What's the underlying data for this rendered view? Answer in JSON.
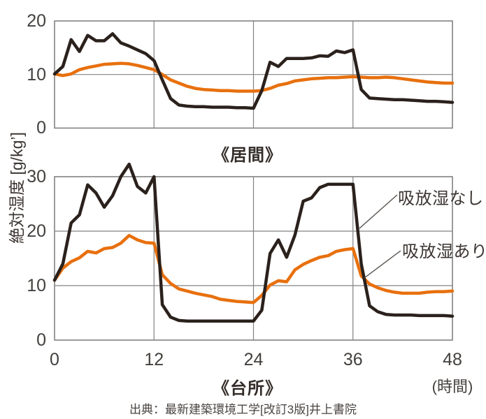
{
  "labels": {
    "ylabel": "絶対湿度 [g/kg’]",
    "x_unit": "(時間)",
    "source": "出典：最新建築環境工学[改訂3版]井上書院"
  },
  "legend": {
    "no_sorption": "吸放湿なし",
    "with_sorption": "吸放湿あり"
  },
  "colors": {
    "no_sorption": "#2b211c",
    "with_sorption": "#e8700e",
    "grid": "#828282",
    "text": "#3c3633",
    "pointer": "#55504c"
  },
  "chart_data": [
    {
      "type": "line",
      "title": "《居間》",
      "xlabel": "時間",
      "ylabel": "絶対湿度 [g/kg’]",
      "xlim": [
        0,
        48
      ],
      "ylim": [
        0,
        20
      ],
      "xticks": [
        0,
        12,
        24,
        36,
        48
      ],
      "yticks": [
        0,
        10,
        20
      ],
      "x_tick_labels": false,
      "grid": true,
      "x_hours": [
        0,
        1,
        2,
        3,
        4,
        5,
        6,
        7,
        8,
        9,
        10,
        11,
        12,
        13,
        14,
        15,
        16,
        17,
        18,
        19,
        20,
        21,
        22,
        23,
        24,
        25,
        26,
        27,
        28,
        29,
        30,
        31,
        32,
        33,
        34,
        35,
        36,
        37,
        38,
        39,
        40,
        41,
        42,
        43,
        44,
        45,
        46,
        47,
        48
      ],
      "series": [
        {
          "name": "吸放湿なし",
          "color_key": "no_sorption",
          "values": [
            10.1,
            11.5,
            16.5,
            14.3,
            17.3,
            16.3,
            16.3,
            17.6,
            15.9,
            15.3,
            14.6,
            13.9,
            12.6,
            9.0,
            5.5,
            4.3,
            4.1,
            4.0,
            4.0,
            3.9,
            3.9,
            3.9,
            3.8,
            3.8,
            3.7,
            7.0,
            12.3,
            11.5,
            13.0,
            13.0,
            13.0,
            13.1,
            13.5,
            13.4,
            14.4,
            14.1,
            14.6,
            7.2,
            5.6,
            5.5,
            5.4,
            5.3,
            5.3,
            5.2,
            5.1,
            5.0,
            5.0,
            4.9,
            4.8
          ]
        },
        {
          "name": "吸放湿あり",
          "color_key": "with_sorption",
          "values": [
            10.1,
            9.8,
            10.1,
            10.9,
            11.3,
            11.6,
            11.9,
            12.0,
            12.1,
            12.0,
            11.7,
            11.3,
            10.9,
            10.0,
            9.0,
            8.4,
            7.8,
            7.4,
            7.2,
            7.1,
            7.0,
            7.0,
            6.9,
            6.9,
            6.9,
            7.0,
            7.4,
            8.0,
            8.3,
            8.8,
            9.0,
            9.2,
            9.3,
            9.4,
            9.4,
            9.5,
            9.6,
            9.5,
            9.4,
            9.4,
            9.5,
            9.4,
            9.2,
            9.0,
            8.8,
            8.6,
            8.5,
            8.4,
            8.4
          ]
        }
      ]
    },
    {
      "type": "line",
      "title": "《台所》",
      "xlabel": "時間",
      "ylabel": "絶対湿度 [g/kg’]",
      "xlim": [
        0,
        48
      ],
      "ylim": [
        0,
        30
      ],
      "xticks": [
        0,
        12,
        24,
        36,
        48
      ],
      "yticks": [
        0,
        10,
        20,
        30
      ],
      "x_tick_labels": true,
      "grid": true,
      "x_hours": [
        0,
        1,
        2,
        3,
        4,
        5,
        6,
        7,
        8,
        9,
        10,
        11,
        12,
        13,
        14,
        15,
        16,
        17,
        18,
        19,
        20,
        21,
        22,
        23,
        24,
        25,
        26,
        27,
        28,
        29,
        30,
        31,
        32,
        33,
        34,
        35,
        36,
        37,
        38,
        39,
        40,
        41,
        42,
        43,
        44,
        45,
        46,
        47,
        48
      ],
      "series": [
        {
          "name": "吸放湿なし",
          "color_key": "no_sorption",
          "values": [
            11.0,
            14.0,
            21.5,
            23.0,
            28.5,
            27.0,
            24.4,
            26.5,
            30.0,
            32.3,
            28.2,
            27.0,
            30.0,
            6.5,
            4.2,
            3.6,
            3.5,
            3.5,
            3.5,
            3.5,
            3.5,
            3.5,
            3.5,
            3.5,
            3.5,
            5.5,
            15.9,
            18.4,
            15.2,
            19.3,
            25.5,
            26.1,
            28.0,
            28.6,
            28.6,
            28.6,
            28.6,
            14.0,
            6.3,
            5.2,
            4.7,
            4.6,
            4.6,
            4.6,
            4.5,
            4.5,
            4.5,
            4.5,
            4.4
          ]
        },
        {
          "name": "吸放湿あり",
          "color_key": "with_sorption",
          "values": [
            11.0,
            13.2,
            14.4,
            15.1,
            16.3,
            16.0,
            16.8,
            17.0,
            17.8,
            19.2,
            18.4,
            17.9,
            17.8,
            12.0,
            10.4,
            9.4,
            9.0,
            8.6,
            8.3,
            8.0,
            7.5,
            7.3,
            7.1,
            7.0,
            6.9,
            8.2,
            10.1,
            10.9,
            10.7,
            12.9,
            13.9,
            14.6,
            15.2,
            15.5,
            16.3,
            16.6,
            16.8,
            11.8,
            10.3,
            9.6,
            9.1,
            8.8,
            8.6,
            8.6,
            8.6,
            8.8,
            8.9,
            8.9,
            9.0
          ]
        }
      ]
    }
  ]
}
